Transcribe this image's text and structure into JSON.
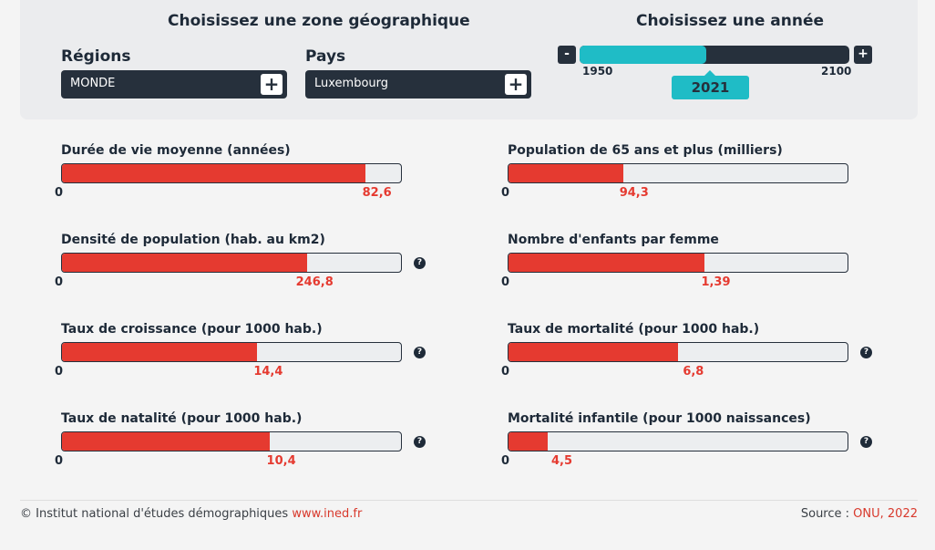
{
  "zone": {
    "title": "Choisissez une zone géographique",
    "regions_label": "Régions",
    "regions_value": "MONDE",
    "pays_label": "Pays",
    "pays_value": "Luxembourg",
    "plus": "+"
  },
  "year": {
    "title": "Choisissez une année",
    "minus": "-",
    "plus": "+",
    "min": "1950",
    "max": "2100",
    "selected": "2021",
    "fraction": 0.47
  },
  "indicators": [
    {
      "title": "Durée de vie moyenne (années)",
      "zero": "0",
      "value": "82,6",
      "fraction": 0.895,
      "help": false
    },
    {
      "title": "Population de 65 ans et plus (milliers)",
      "zero": "0",
      "value": "94,3",
      "fraction": 0.339,
      "help": false
    },
    {
      "title": "Densité de population (hab. au km2)",
      "zero": "0",
      "value": "246,8",
      "fraction": 0.724,
      "help": true
    },
    {
      "title": "Nombre d'enfants par femme",
      "zero": "0",
      "value": "1,39",
      "fraction": 0.579,
      "help": false
    },
    {
      "title": "Taux de croissance (pour 1000 hab.)",
      "zero": "0",
      "value": "14,4",
      "fraction": 0.576,
      "help": true
    },
    {
      "title": "Taux de mortalité (pour 1000 hab.)",
      "zero": "0",
      "value": "6,8",
      "fraction": 0.501,
      "help": true
    },
    {
      "title": "Taux de natalité (pour 1000 hab.)",
      "zero": "0",
      "value": "10,4",
      "fraction": 0.614,
      "help": true
    },
    {
      "title": "Mortalité infantile (pour 1000 naissances)",
      "zero": "0",
      "value": "4,5",
      "fraction": 0.115,
      "help": true
    }
  ],
  "help_symbol": "?",
  "footer": {
    "copyright": "© Institut national d'études démographiques",
    "link": "www.ined.fr",
    "source_label": "Source :",
    "source": "ONU, 2022"
  },
  "colors": {
    "bar": "#e53a30",
    "slider": "#1fbcc6",
    "dark": "#26303c"
  }
}
